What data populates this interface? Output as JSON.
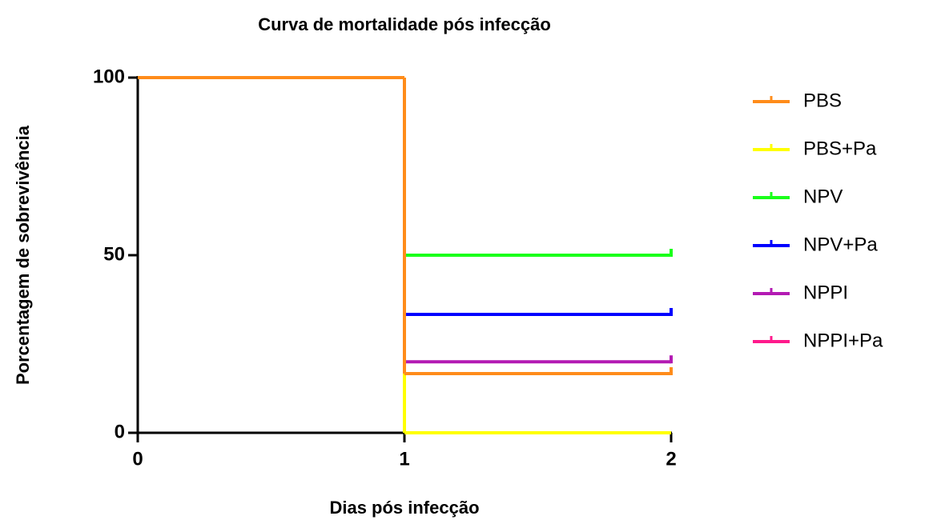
{
  "chart_data": {
    "type": "survival",
    "title": "Curva de mortalidade pós infecção",
    "xlabel": "Dias pós infecção",
    "ylabel": "Porcentagem de sobrevivência",
    "x": [
      0,
      1,
      2
    ],
    "xlim": [
      0,
      2
    ],
    "xticks": [
      0,
      1,
      2
    ],
    "ylim": [
      0,
      100
    ],
    "yticks": [
      0,
      50,
      100
    ],
    "legend": "right",
    "series": [
      {
        "name": "PBS",
        "color": "#ff8c1a",
        "values": [
          100,
          16.67,
          16.67
        ]
      },
      {
        "name": "PBS+Pa",
        "color": "#ffff00",
        "values": [
          100,
          0,
          null
        ]
      },
      {
        "name": "NPV",
        "color": "#1aff1a",
        "values": [
          100,
          50,
          50
        ]
      },
      {
        "name": "NPV+Pa",
        "color": "#0000ff",
        "values": [
          100,
          33.33,
          33.33
        ]
      },
      {
        "name": "NPPI",
        "color": "#b31ab3",
        "values": [
          100,
          20,
          20
        ]
      },
      {
        "name": "NPPI+Pa",
        "color": "#ff1a8c",
        "values": [
          100,
          0,
          null
        ]
      }
    ]
  }
}
